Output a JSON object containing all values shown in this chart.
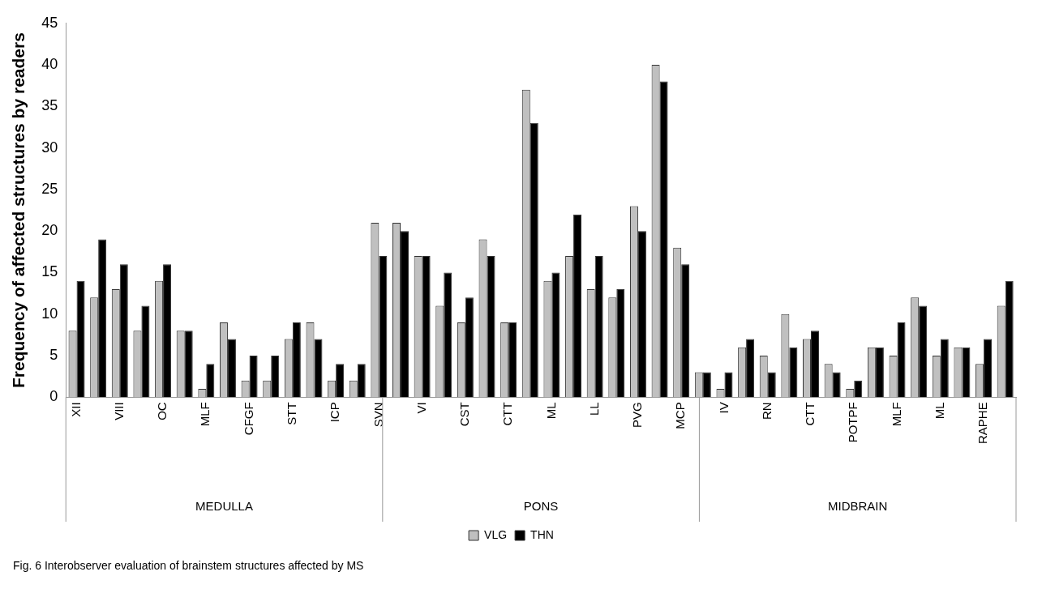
{
  "chart_data": {
    "type": "bar",
    "ylabel": "Frequency of affected structures by readers",
    "categories": [
      "XII",
      null,
      "VIII",
      null,
      "OC",
      null,
      "MLF",
      null,
      "CFGF",
      null,
      "STT",
      null,
      "ICP",
      null,
      "SVN",
      null,
      "VI",
      null,
      "CST",
      null,
      "CTT",
      null,
      "ML",
      null,
      "LL",
      null,
      "PVG",
      null,
      "MCP",
      null,
      "IV",
      null,
      "RN",
      null,
      "CTT",
      null,
      "POTPF",
      null,
      "MLF",
      null,
      "ML",
      null,
      "RAPHE",
      null
    ],
    "series": [
      {
        "name": "VLG",
        "color": "#c0c0c0",
        "values": [
          8,
          12,
          13,
          8,
          14,
          8,
          1,
          9,
          2,
          2,
          7,
          9,
          2,
          2,
          21,
          21,
          17,
          11,
          9,
          19,
          9,
          37,
          14,
          17,
          13,
          12,
          23,
          40,
          18,
          3,
          1,
          6,
          5,
          10,
          7,
          4,
          1,
          6,
          5,
          12,
          5,
          6,
          4,
          11
        ]
      },
      {
        "name": "THN",
        "color": "#000000",
        "values": [
          14,
          19,
          16,
          11,
          16,
          8,
          4,
          7,
          5,
          5,
          9,
          7,
          4,
          4,
          17,
          20,
          17,
          15,
          12,
          17,
          9,
          33,
          15,
          22,
          17,
          13,
          20,
          38,
          16,
          3,
          3,
          7,
          3,
          6,
          8,
          3,
          2,
          6,
          9,
          11,
          7,
          6,
          7,
          14
        ]
      }
    ],
    "ylim": [
      0,
      45
    ],
    "yticks": [
      0,
      5,
      10,
      15,
      20,
      25,
      30,
      35,
      40,
      45
    ],
    "grid": false,
    "legend": "bottom",
    "annotations": [
      "MEDULLA",
      "PONS",
      "MIDBRAIN",
      "Fig. 6  Interobserver evaluation of brainstem structures affected by MS"
    ]
  }
}
